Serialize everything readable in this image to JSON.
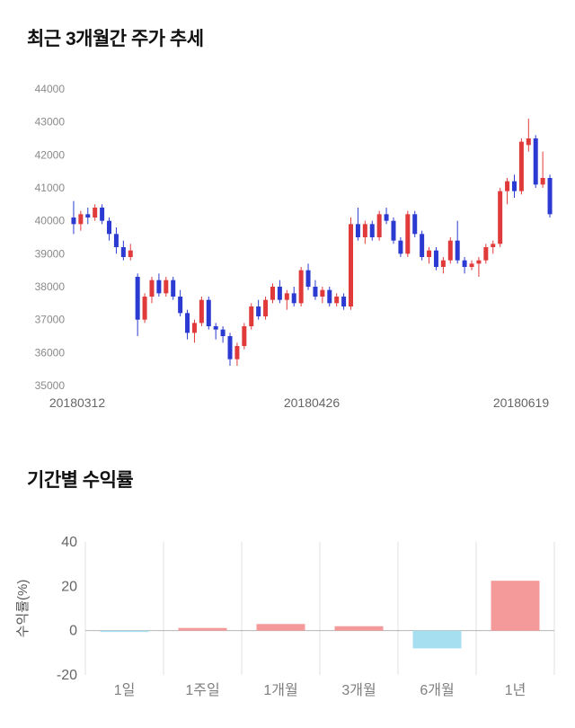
{
  "sections": {
    "price_trend": {
      "title": "최근 3개월간 주가 추세"
    },
    "returns": {
      "title": "기간별 수익률"
    }
  },
  "chart_data": [
    {
      "type": "candlestick",
      "title": "최근 3개월간 주가 추세",
      "ylim": [
        35000,
        44000
      ],
      "ytick_step": 1000,
      "x_axis_labels": [
        "20180312",
        "20180426",
        "20180619"
      ],
      "up_color": "#e03a3a",
      "down_color": "#2b3bd1",
      "candles": [
        [
          40100,
          40600,
          39600,
          39900
        ],
        [
          39900,
          40300,
          39700,
          40200
        ],
        [
          40200,
          40400,
          39900,
          40100
        ],
        [
          40100,
          40500,
          40000,
          40400
        ],
        [
          40400,
          40500,
          39900,
          40000
        ],
        [
          40000,
          40100,
          39400,
          39600
        ],
        [
          39600,
          39800,
          39000,
          39200
        ],
        [
          39200,
          39400,
          38800,
          38900
        ],
        [
          38900,
          39300,
          38800,
          39100
        ],
        [
          38300,
          38400,
          36500,
          37000
        ],
        [
          37000,
          37800,
          36900,
          37700
        ],
        [
          37700,
          38300,
          37500,
          38200
        ],
        [
          38200,
          38400,
          37700,
          37800
        ],
        [
          37800,
          38300,
          37700,
          38200
        ],
        [
          38200,
          38300,
          37600,
          37700
        ],
        [
          37700,
          37900,
          37100,
          37200
        ],
        [
          37200,
          37300,
          36400,
          36600
        ],
        [
          36600,
          37000,
          36300,
          36900
        ],
        [
          36900,
          37700,
          36800,
          37600
        ],
        [
          37600,
          37700,
          36700,
          36800
        ],
        [
          36800,
          36900,
          36400,
          36700
        ],
        [
          36700,
          36800,
          36300,
          36500
        ],
        [
          36500,
          36600,
          35600,
          35800
        ],
        [
          35800,
          36300,
          35600,
          36200
        ],
        [
          36200,
          36900,
          36100,
          36800
        ],
        [
          36800,
          37500,
          36700,
          37400
        ],
        [
          37400,
          37600,
          37000,
          37100
        ],
        [
          37100,
          37700,
          37000,
          37600
        ],
        [
          37600,
          38100,
          37500,
          38000
        ],
        [
          38000,
          38200,
          37500,
          37600
        ],
        [
          37600,
          37900,
          37300,
          37800
        ],
        [
          37800,
          38000,
          37400,
          37500
        ],
        [
          37500,
          38600,
          37400,
          38500
        ],
        [
          38500,
          38700,
          37900,
          38000
        ],
        [
          38000,
          38200,
          37600,
          37700
        ],
        [
          37700,
          38000,
          37500,
          37900
        ],
        [
          37900,
          38000,
          37400,
          37500
        ],
        [
          37500,
          37800,
          37400,
          37700
        ],
        [
          37700,
          37800,
          37300,
          37400
        ],
        [
          37400,
          40100,
          37300,
          39900
        ],
        [
          39900,
          40400,
          39400,
          39500
        ],
        [
          39500,
          40000,
          39300,
          39900
        ],
        [
          39900,
          40000,
          39400,
          39500
        ],
        [
          39500,
          40300,
          39400,
          40200
        ],
        [
          40200,
          40400,
          39900,
          40000
        ],
        [
          40000,
          40100,
          39300,
          39400
        ],
        [
          39400,
          39500,
          38900,
          39000
        ],
        [
          39000,
          40300,
          38900,
          40200
        ],
        [
          40200,
          40300,
          39500,
          39600
        ],
        [
          39600,
          39700,
          38800,
          38900
        ],
        [
          38900,
          39200,
          38700,
          39100
        ],
        [
          39100,
          39200,
          38500,
          38600
        ],
        [
          38600,
          38900,
          38400,
          38800
        ],
        [
          38800,
          39500,
          38700,
          39400
        ],
        [
          39400,
          40000,
          38700,
          38800
        ],
        [
          38800,
          38900,
          38400,
          38600
        ],
        [
          38600,
          38800,
          38500,
          38700
        ],
        [
          38700,
          38900,
          38300,
          38800
        ],
        [
          38800,
          39300,
          38700,
          39200
        ],
        [
          39200,
          39400,
          39000,
          39300
        ],
        [
          39300,
          41000,
          39200,
          40900
        ],
        [
          40900,
          41300,
          40500,
          41200
        ],
        [
          41200,
          41400,
          40700,
          40900
        ],
        [
          40900,
          42500,
          40800,
          42400
        ],
        [
          42300,
          43100,
          42100,
          42500
        ],
        [
          42500,
          42600,
          41000,
          41100
        ],
        [
          41100,
          42100,
          41000,
          41300
        ],
        [
          41300,
          41400,
          40100,
          40200
        ]
      ]
    },
    {
      "type": "bar",
      "title": "기간별 수익률",
      "ylabel": "수익률(%)",
      "categories": [
        "1일",
        "1주일",
        "1개월",
        "3개월",
        "6개월",
        "1년"
      ],
      "values": [
        -0.3,
        1.2,
        3,
        2,
        -8,
        22.5
      ],
      "ylim": [
        -20,
        40
      ],
      "yticks": [
        40,
        20,
        0,
        -20
      ],
      "positive_color": "#f59a9a",
      "negative_color": "#a6dff0",
      "grid_color": "#e0e0e0",
      "zero_line_color": "#b5b5b5"
    }
  ]
}
